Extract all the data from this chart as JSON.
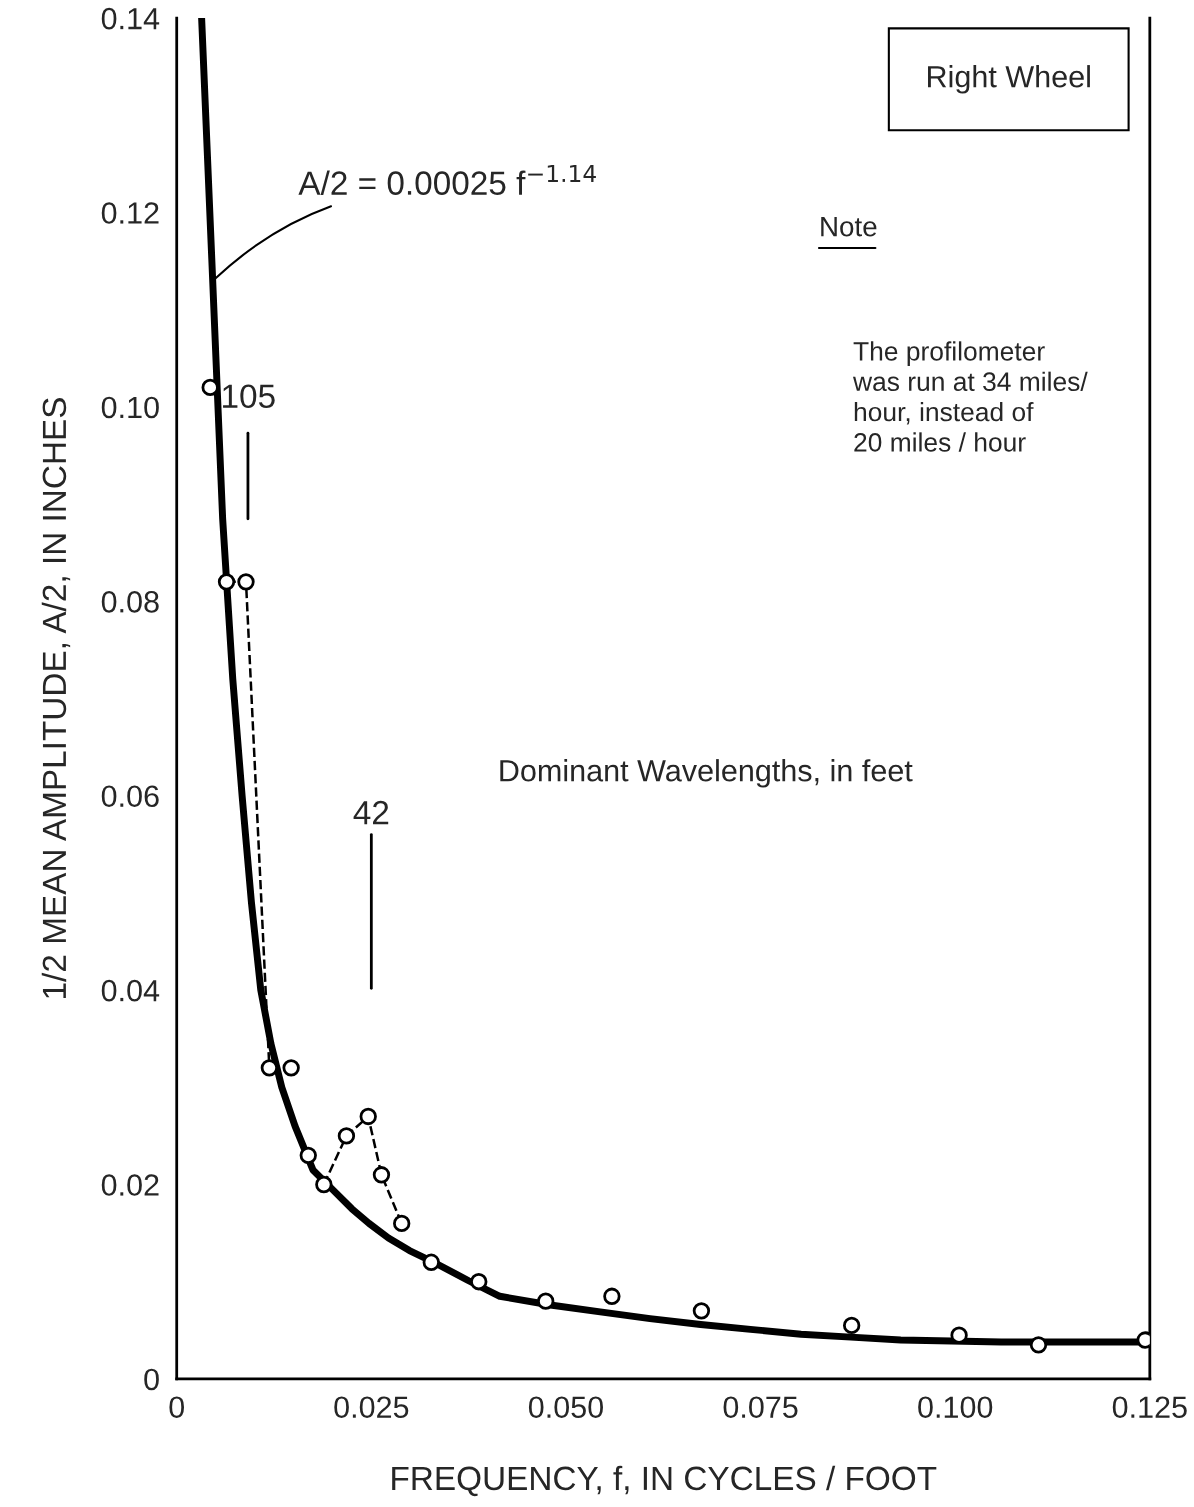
{
  "chart_data": {
    "type": "scatter",
    "xlabel": "FREQUENCY, f, IN CYCLES / FOOT",
    "ylabel": "1/2 MEAN AMPLITUDE, A/2, IN INCHES",
    "xlim": [
      0,
      0.125
    ],
    "ylim": [
      0,
      0.14
    ],
    "xticks": [
      0,
      0.025,
      {
        "value": 0.05,
        "label": "0.050"
      },
      0.075,
      {
        "value": 0.1,
        "label": "0.100"
      },
      0.125
    ],
    "yticks": [
      0,
      0.02,
      0.04,
      0.06,
      0.08,
      {
        "value": 0.1,
        "label": "0.10"
      },
      0.12,
      0.14
    ],
    "grid": false,
    "legend": false,
    "series": [
      {
        "type": "line",
        "color": "#000000",
        "line_style": "solid",
        "marker": "none",
        "x": [
          0.0032,
          0.0045,
          0.0059,
          0.0072,
          0.0084,
          0.0096,
          0.0108,
          0.0121,
          0.0135,
          0.0152,
          0.0175,
          0.02,
          0.0225,
          0.0247,
          0.0272,
          0.0299,
          0.0335,
          0.0375,
          0.0415,
          0.048,
          0.0544,
          0.0608,
          0.0673,
          0.0737,
          0.0802,
          0.0866,
          0.093,
          0.0995,
          0.1059,
          0.115,
          0.125
        ],
        "values": [
          0.14,
          0.1153,
          0.0885,
          0.072,
          0.06,
          0.049,
          0.04,
          0.0345,
          0.03,
          0.026,
          0.0215,
          0.0195,
          0.0175,
          0.016,
          0.0145,
          0.0132,
          0.0118,
          0.0101,
          0.0085,
          0.0076,
          0.0069,
          0.0062,
          0.0056,
          0.0051,
          0.0046,
          0.0043,
          0.004,
          0.0039,
          0.0038,
          0.0038,
          0.0038
        ]
      },
      {
        "type": "line",
        "color": "#000000",
        "line_style": "dashed",
        "marker": "none",
        "x": [
          0.0064,
          0.0089,
          0.0119
        ],
        "values": [
          0.082,
          0.082,
          0.032
        ]
      },
      {
        "type": "line",
        "color": "#000000",
        "line_style": "dashed",
        "marker": "none",
        "x": [
          0.0189,
          0.0218,
          0.0246,
          0.0263,
          0.0289
        ],
        "values": [
          0.02,
          0.025,
          0.027,
          0.021,
          0.016
        ]
      },
      {
        "color": "#000000",
        "marker": "circle",
        "x": [
          0.0043,
          0.0064,
          0.0089,
          0.0119,
          0.0147,
          0.0169,
          0.0189,
          0.0218,
          0.0246,
          0.0263,
          0.0289,
          0.0327,
          0.0388,
          0.0474,
          0.0559,
          0.0674,
          0.0867,
          0.1005,
          0.1107,
          0.1244
        ],
        "values": [
          0.102,
          0.082,
          0.082,
          0.032,
          0.032,
          0.023,
          0.02,
          0.025,
          0.027,
          0.021,
          0.016,
          0.012,
          0.01,
          0.008,
          0.0085,
          0.007,
          0.0055,
          0.0045,
          0.0035,
          0.004
        ]
      }
    ],
    "annotations": [
      {
        "text": "A/2 = 0.00025 f$^{−1.14}$",
        "x": 0.0047,
        "y": 0.113
      },
      "105",
      "42",
      "Dominant Wavelengths, in feet",
      "Right Wheel",
      "Note",
      "The profilometer\nwas run at 34 miles/\nhour, instead of\n20 miles / hour"
    ]
  }
}
